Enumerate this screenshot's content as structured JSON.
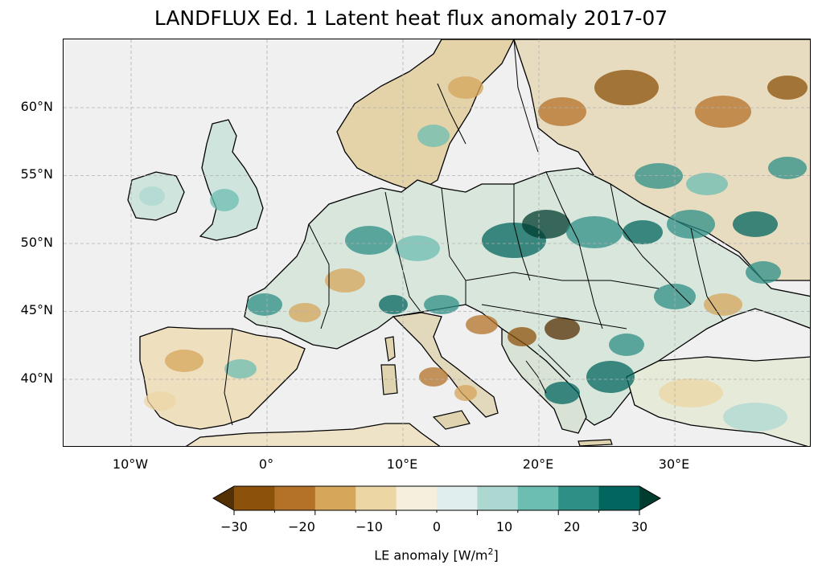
{
  "title": "LANDFLUX Ed. 1 Latent heat flux anomaly 2017-07",
  "map": {
    "projection": "PlateCarree",
    "lon_range": [
      -15,
      40
    ],
    "lat_range": [
      35,
      65
    ],
    "gridlines": "dashed grey",
    "ocean_color": "#f0f0f0",
    "coastline_color": "#000000"
  },
  "lat_ticks": [
    "60°N",
    "55°N",
    "50°N",
    "45°N",
    "40°N"
  ],
  "lon_ticks": [
    "10°W",
    "0°",
    "10°E",
    "20°E",
    "30°E"
  ],
  "colorbar": {
    "label": "LE anomaly [W/m²]",
    "label_prefix": "LE anomaly [W/m",
    "label_sup": "2",
    "label_suffix": "]",
    "tick_labels": [
      "−30",
      "−20",
      "−10",
      "0",
      "10",
      "20",
      "30"
    ],
    "range": [
      -30,
      30
    ],
    "extend": "both",
    "colors": [
      "#543005",
      "#8c510a",
      "#b47228",
      "#d6a65b",
      "#ecd6a4",
      "#f5efdd",
      "#e0efed",
      "#add8d1",
      "#6cbdb2",
      "#2e8f87",
      "#01665e",
      "#003c30"
    ]
  }
}
